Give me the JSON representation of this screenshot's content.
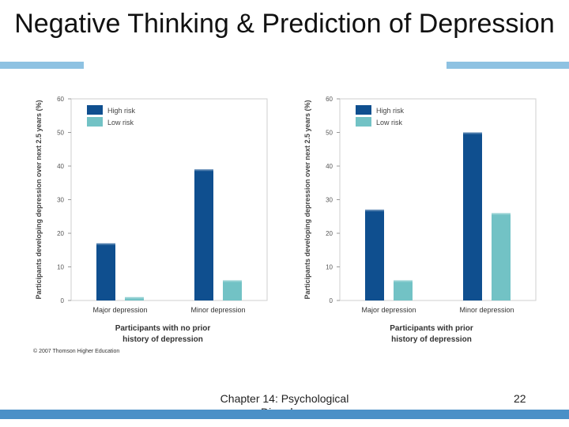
{
  "slide": {
    "title": "Negative Thinking & Prediction of Depression",
    "copyright": "© 2007 Thomson Higher Education",
    "footer": "Chapter 14: Psychological Disorders",
    "page_number": "22"
  },
  "colors": {
    "high_risk": "#0f4f8f",
    "low_risk": "#72c2c5",
    "accent_bar": "#8ec2e2",
    "footer_bar": "#4b90c7"
  },
  "chart_data": [
    {
      "type": "bar",
      "title": "",
      "ylabel": "Participants developing depression over next 2.5 years (%)",
      "xlabel": "Participants with no prior history of depression",
      "xlabel_lines": [
        "Participants with no prior",
        "history of depression"
      ],
      "categories": [
        "Major depression",
        "Minor depression"
      ],
      "ylim": [
        0,
        60
      ],
      "yticks": [
        "0",
        "10",
        "20",
        "30",
        "40",
        "50",
        "60"
      ],
      "legend_position": "top-left",
      "series": [
        {
          "name": "High risk",
          "values": [
            17,
            39
          ]
        },
        {
          "name": "Low risk",
          "values": [
            1,
            6
          ]
        }
      ]
    },
    {
      "type": "bar",
      "title": "",
      "ylabel": "Participants developing depression over next 2.5 years (%)",
      "xlabel": "Participants with prior history of depression",
      "xlabel_lines": [
        "Participants with prior",
        "history of depression"
      ],
      "categories": [
        "Major depression",
        "Minor depression"
      ],
      "ylim": [
        0,
        60
      ],
      "yticks": [
        "0",
        "10",
        "20",
        "30",
        "40",
        "50",
        "60"
      ],
      "legend_position": "top-left",
      "series": [
        {
          "name": "High risk",
          "values": [
            27,
            50
          ]
        },
        {
          "name": "Low risk",
          "values": [
            6,
            26
          ]
        }
      ]
    }
  ]
}
